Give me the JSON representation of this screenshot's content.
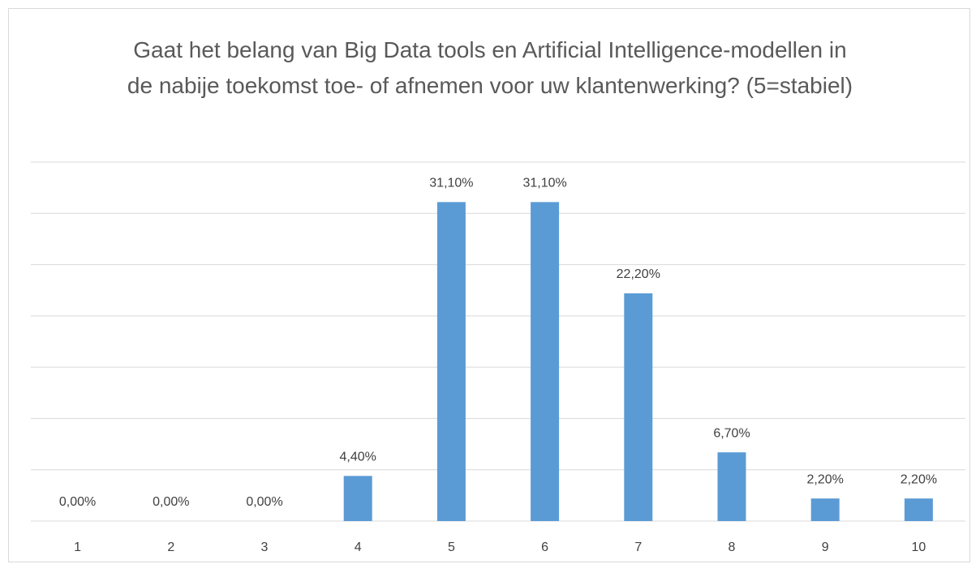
{
  "chart_data": {
    "type": "bar",
    "title": "Gaat het belang van Big Data tools en Artificial Intelligence-modellen in de nabije toekomst toe- of afnemen voor uw klantenwerking? (5=stabiel)",
    "categories": [
      "1",
      "2",
      "3",
      "4",
      "5",
      "6",
      "7",
      "8",
      "9",
      "10"
    ],
    "values": [
      0,
      0,
      0,
      4.4,
      31.1,
      31.1,
      22.2,
      6.7,
      2.2,
      2.2
    ],
    "value_labels": [
      "0,00%",
      "0,00%",
      "0,00%",
      "4,40%",
      "31,10%",
      "31,10%",
      "22,20%",
      "6,70%",
      "2,20%",
      "2,20%"
    ],
    "color": "#5b9bd5",
    "ylim": [
      0,
      35
    ],
    "yticks": [
      0,
      5,
      10,
      15,
      20,
      25,
      30,
      35
    ],
    "grid": true
  }
}
